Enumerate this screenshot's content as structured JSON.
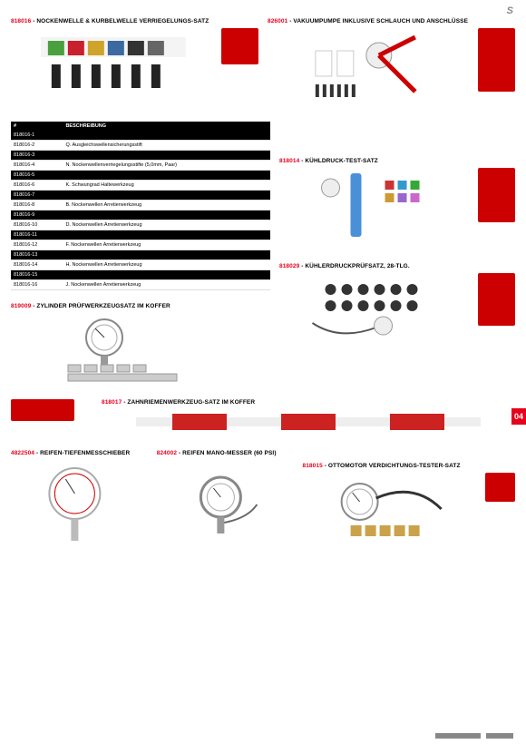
{
  "logo": "S",
  "tab": "04",
  "colors": {
    "code": "#e6001c",
    "black": "#000",
    "case": "#c00",
    "divider": "#ddd"
  },
  "products": {
    "p1": {
      "code": "818016",
      "title": "NOCKENWELLE & KURBELWELLE VERRIEGELUNGS-SATZ"
    },
    "p2": {
      "code": "826001",
      "title": "VAKUUMPUMPE INKLUSIVE SCHLAUCH UND ANSCHLÜSSE"
    },
    "p3": {
      "code": "818014",
      "title": "KÜHLDRUCK-TEST-SATZ"
    },
    "p4": {
      "code": "818029",
      "title": "KÜHLERDRUCKPRÜFSATZ, 28-TLG."
    },
    "p5": {
      "code": "819009",
      "title": "ZYLINDER PRÜFWERKZEUGSATZ IM KOFFER"
    },
    "p6": {
      "code": "818017",
      "title": "ZAHNRIEMENWERKZEUG-SATZ IM KOFFER"
    },
    "p7": {
      "code": "4822504",
      "title": "REIFEN-TIEFENMESSCHIEBER"
    },
    "p8": {
      "code": "824002",
      "title": "REIFEN MANO-MESSER (60 PSI)"
    },
    "p9": {
      "code": "818015",
      "title": "OTTOMOTOR VERDICHTUNGS-TESTER-SATZ"
    }
  },
  "table818016": {
    "headers": {
      "c1": "#",
      "c2": "BESCHREIBUNG"
    },
    "rows": [
      {
        "n": "818016-1",
        "d": "",
        "bk": true
      },
      {
        "n": "818016-2",
        "d": "Q. Ausgleichswellensicherungsstift"
      },
      {
        "n": "818016-3",
        "d": "",
        "bk": true
      },
      {
        "n": "818016-4",
        "d": "N. Nockenwellenverriegelungsstifte (5,0mm, Paar)"
      },
      {
        "n": "818016-5",
        "d": "",
        "bk": true
      },
      {
        "n": "818016-6",
        "d": "K. Schwungrad Haltewerkzeug"
      },
      {
        "n": "818016-7",
        "d": "",
        "bk": true
      },
      {
        "n": "818016-8",
        "d": "B. Nockenwellen Arretierwerkzeug"
      },
      {
        "n": "818016-9",
        "d": "",
        "bk": true
      },
      {
        "n": "818016-10",
        "d": "D. Nockenwellen Arretierwerkzeug"
      },
      {
        "n": "818016-11",
        "d": "",
        "bk": true
      },
      {
        "n": "818016-12",
        "d": "F. Nockenwellen Arretierwerkzeug"
      },
      {
        "n": "818016-13",
        "d": "",
        "bk": true
      },
      {
        "n": "818016-14",
        "d": "H. Nockenwellen Arretierwerkzeug"
      },
      {
        "n": "818016-15",
        "d": "",
        "bk": true
      },
      {
        "n": "818016-16",
        "d": "J. Nockenwellen Arretierwerkzeug"
      }
    ]
  }
}
